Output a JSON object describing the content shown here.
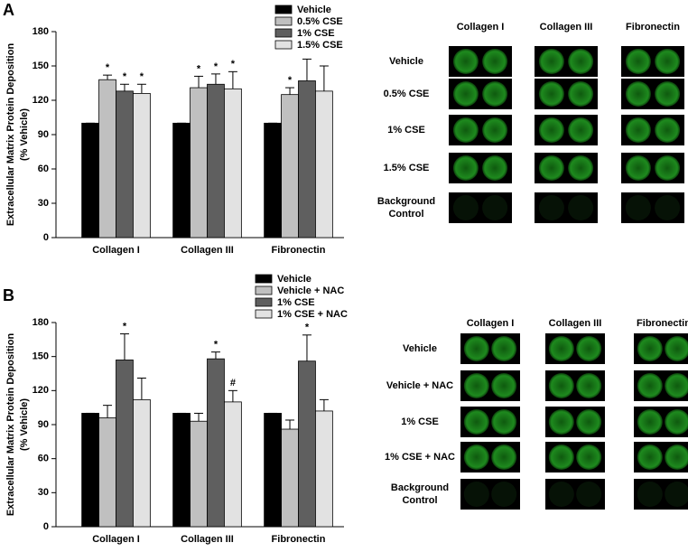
{
  "panel_labels": [
    "A",
    "B"
  ],
  "chart_data": [
    {
      "type": "bar",
      "ylabel": [
        "Extracellular Matrix Protein Deposition",
        "(% Vehicle)"
      ],
      "categories": [
        "Collagen I",
        "Collagen III",
        "Fibronectin"
      ],
      "ylim": [
        0,
        180
      ],
      "yticks": [
        0,
        30,
        60,
        90,
        120,
        150,
        180
      ],
      "series": [
        {
          "name": "Vehicle",
          "color": "#000000",
          "values": [
            100,
            100,
            100
          ],
          "errors": [
            0,
            0,
            0
          ],
          "markers": [
            null,
            null,
            null
          ]
        },
        {
          "name": "0.5% CSE",
          "color": "#c0c0c0",
          "values": [
            138,
            131,
            125
          ],
          "errors": [
            4,
            10,
            6
          ],
          "markers": [
            "*",
            "*",
            "*"
          ]
        },
        {
          "name": "1% CSE",
          "color": "#5f5f5f",
          "values": [
            128,
            134,
            137
          ],
          "errors": [
            6,
            9,
            19
          ],
          "markers": [
            "*",
            "*",
            null
          ]
        },
        {
          "name": "1.5% CSE",
          "color": "#e2e2e2",
          "values": [
            126,
            130,
            128
          ],
          "errors": [
            8,
            15,
            22
          ],
          "markers": [
            "*",
            "*",
            null
          ]
        }
      ]
    },
    {
      "type": "bar",
      "ylabel": [
        "Extracellular Matrix Protein Deposition",
        "(% Vehicle)"
      ],
      "categories": [
        "Collagen I",
        "Collagen III",
        "Fibronectin"
      ],
      "ylim": [
        0,
        180
      ],
      "yticks": [
        0,
        30,
        60,
        90,
        120,
        150,
        180
      ],
      "series": [
        {
          "name": "Vehicle",
          "color": "#000000",
          "values": [
            100,
            100,
            100
          ],
          "errors": [
            0,
            0,
            0
          ],
          "markers": [
            null,
            null,
            null
          ]
        },
        {
          "name": "Vehicle + NAC",
          "color": "#c0c0c0",
          "values": [
            96,
            93,
            86
          ],
          "errors": [
            11,
            7,
            8
          ],
          "markers": [
            null,
            null,
            null
          ]
        },
        {
          "name": "1% CSE",
          "color": "#5f5f5f",
          "values": [
            147,
            148,
            146
          ],
          "errors": [
            23,
            6,
            23
          ],
          "markers": [
            "*",
            "*",
            "*"
          ]
        },
        {
          "name": "1% CSE + NAC",
          "color": "#e2e2e2",
          "values": [
            112,
            110,
            102
          ],
          "errors": [
            19,
            10,
            10
          ],
          "markers": [
            null,
            "#",
            null
          ]
        }
      ]
    }
  ],
  "image_grids": [
    {
      "columns": [
        "Collagen I",
        "Collagen III",
        "Fibronectin"
      ],
      "rows": [
        "Vehicle",
        "0.5% CSE",
        "1% CSE",
        "1.5% CSE",
        "Background Control"
      ]
    },
    {
      "columns": [
        "Collagen I",
        "Collagen III",
        "Fibronectin"
      ],
      "rows": [
        "Vehicle",
        "Vehicle + NAC",
        "1% CSE",
        "1% CSE + NAC",
        "Background Control"
      ]
    }
  ]
}
